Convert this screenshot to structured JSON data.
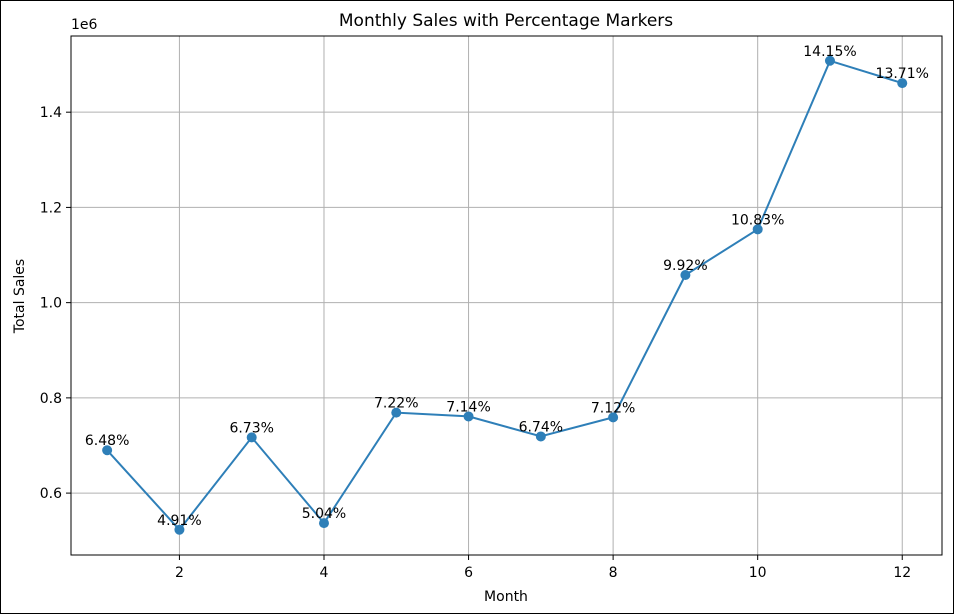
{
  "chart_data": {
    "type": "line",
    "title": "Monthly Sales with Percentage Markers",
    "xlabel": "Month",
    "ylabel": "Total Sales",
    "y_offset_label": "1e6",
    "xlim": [
      0.5,
      12.55
    ],
    "ylim": [
      0.47,
      1.56
    ],
    "x_ticks": [
      2,
      4,
      6,
      8,
      10,
      12
    ],
    "y_ticks": [
      0.6,
      0.8,
      1.0,
      1.2,
      1.4
    ],
    "y_tick_labels": [
      "0.6",
      "0.8",
      "1.0",
      "1.2",
      "1.4"
    ],
    "grid": true,
    "color": "#2e7fb8",
    "series": [
      {
        "x": [
          1,
          2,
          3,
          4,
          5,
          6,
          7,
          8,
          9,
          10,
          11,
          12
        ],
        "values": [
          0.69,
          0.523,
          0.717,
          0.537,
          0.769,
          0.761,
          0.719,
          0.759,
          1.058,
          1.154,
          1.508,
          1.461
        ],
        "labels": [
          "6.48%",
          "4.91%",
          "6.73%",
          "5.04%",
          "7.22%",
          "7.14%",
          "6.74%",
          "7.12%",
          "9.92%",
          "10.83%",
          "14.15%",
          "13.71%"
        ]
      }
    ]
  }
}
